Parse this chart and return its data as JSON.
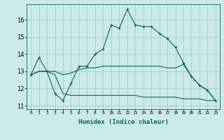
{
  "xlabel": "Humidex (Indice chaleur)",
  "x_values": [
    0,
    1,
    2,
    3,
    4,
    5,
    6,
    7,
    8,
    9,
    10,
    11,
    12,
    13,
    14,
    15,
    16,
    17,
    18,
    19,
    20,
    21,
    22,
    23
  ],
  "line1": [
    12.8,
    13.8,
    13.0,
    11.7,
    11.3,
    12.3,
    13.3,
    13.3,
    14.0,
    14.3,
    15.7,
    15.5,
    16.6,
    15.7,
    15.6,
    15.6,
    15.2,
    14.9,
    14.4,
    13.5,
    12.7,
    12.2,
    11.9,
    11.3
  ],
  "line2": [
    12.8,
    13.0,
    13.0,
    13.0,
    12.8,
    12.9,
    13.1,
    13.2,
    13.2,
    13.3,
    13.3,
    13.3,
    13.3,
    13.3,
    13.3,
    13.3,
    13.3,
    13.2,
    13.2,
    13.4,
    12.7,
    12.2,
    11.9,
    11.3
  ],
  "line3": [
    12.8,
    13.0,
    13.0,
    12.8,
    11.7,
    11.6,
    11.6,
    11.6,
    11.6,
    11.6,
    11.6,
    11.6,
    11.6,
    11.6,
    11.5,
    11.5,
    11.5,
    11.5,
    11.5,
    11.4,
    11.4,
    11.4,
    11.3,
    11.3
  ],
  "line_color": "#006868",
  "bg_color": "#cceaea",
  "grid_color": "#aacccc",
  "ylim": [
    10.8,
    16.9
  ],
  "yticks": [
    11,
    12,
    13,
    14,
    15,
    16
  ],
  "xlim": [
    -0.5,
    23.5
  ]
}
